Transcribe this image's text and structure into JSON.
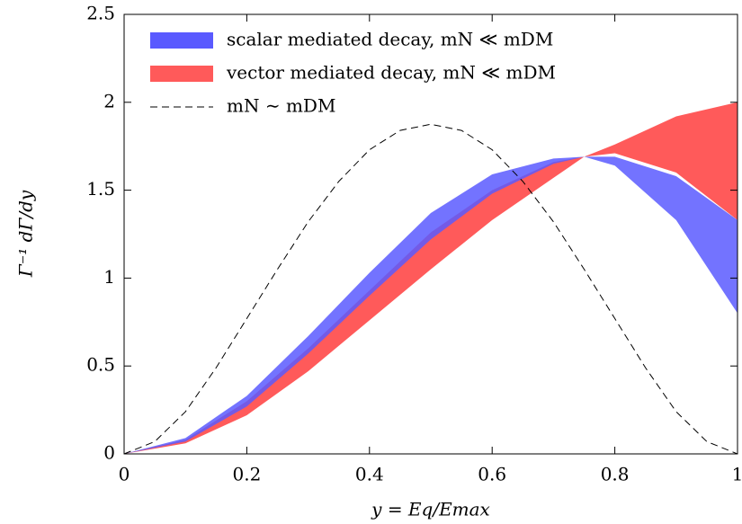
{
  "chart_data": {
    "type": "band",
    "x_label": "y = Eq/Emax",
    "y_label": "Γ⁻¹ dΓ/dy",
    "x": [
      0,
      0.1,
      0.2,
      0.3,
      0.4,
      0.5,
      0.6,
      0.7,
      0.75,
      0.8,
      0.9,
      1.0
    ],
    "series": [
      {
        "name": "vector mediated decay, mN ≪ mDM",
        "color": "#ff5a5a",
        "upper": [
          0,
          0.08,
          0.3,
          0.6,
          0.93,
          1.26,
          1.5,
          1.66,
          1.69,
          1.76,
          1.92,
          2.0
        ],
        "lower": [
          0,
          0.06,
          0.22,
          0.47,
          0.76,
          1.05,
          1.33,
          1.57,
          1.69,
          1.71,
          1.6,
          1.33
        ]
      },
      {
        "name": "scalar mediated decay, mN ≪ mDM",
        "color": "#5a5aff",
        "upper": [
          0,
          0.09,
          0.33,
          0.67,
          1.03,
          1.37,
          1.59,
          1.68,
          1.69,
          1.69,
          1.58,
          1.33
        ],
        "lower": [
          0,
          0.07,
          0.27,
          0.57,
          0.9,
          1.22,
          1.48,
          1.65,
          1.69,
          1.64,
          1.33,
          0.8
        ]
      }
    ],
    "reference": {
      "name": "mN ∼ mDM",
      "color": "#000000",
      "dash": true,
      "x": [
        0,
        0.05,
        0.1,
        0.15,
        0.2,
        0.25,
        0.3,
        0.35,
        0.4,
        0.45,
        0.5,
        0.55,
        0.6,
        0.65,
        0.7,
        0.75,
        0.8,
        0.85,
        0.9,
        0.95,
        1.0
      ],
      "values": [
        0,
        0.07,
        0.24,
        0.49,
        0.77,
        1.05,
        1.32,
        1.55,
        1.73,
        1.84,
        1.875,
        1.84,
        1.73,
        1.55,
        1.32,
        1.05,
        0.77,
        0.49,
        0.24,
        0.07,
        0
      ]
    },
    "xlim": [
      0,
      1
    ],
    "ylim": [
      0,
      2.5
    ],
    "xticks": [
      0,
      0.2,
      0.4,
      0.6,
      0.8,
      1
    ],
    "yticks": [
      0,
      0.5,
      1,
      1.5,
      2,
      2.5
    ]
  }
}
